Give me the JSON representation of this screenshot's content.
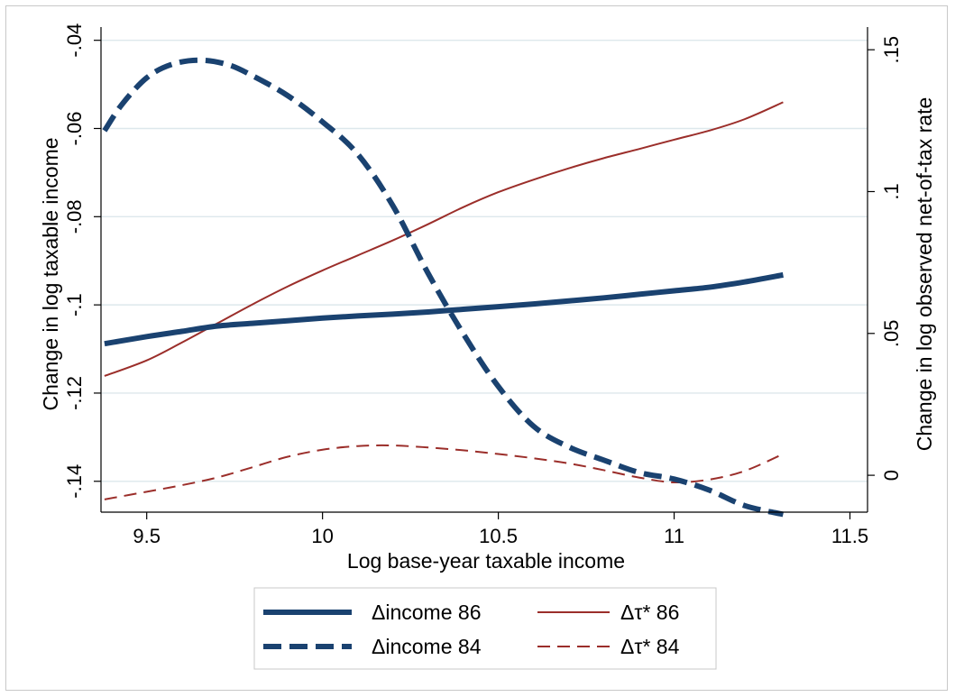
{
  "chart_data": {
    "type": "line",
    "xlabel": "Log base-year taxable income",
    "ylabel_left": "Change in log taxable income",
    "ylabel_right": "Change in log observed net-of-tax rate",
    "xlim": [
      9.37,
      11.55
    ],
    "ylim_left": [
      -0.147,
      -0.037
    ],
    "ylim_right": [
      -0.013,
      0.158
    ],
    "x_ticks": [
      9.5,
      10,
      10.5,
      11,
      11.5
    ],
    "x_tick_labels": [
      "9.5",
      "10",
      "10.5",
      "11",
      "11.5"
    ],
    "y_left_ticks": [
      -0.04,
      -0.06,
      -0.08,
      -0.1,
      -0.12,
      -0.14
    ],
    "y_left_tick_labels": [
      "-.04",
      "-.06",
      "-.08",
      "-.1",
      "-.12",
      "-.14"
    ],
    "y_right_ticks": [
      0.15,
      0.1,
      0.05,
      0
    ],
    "y_right_tick_labels": [
      ".15",
      ".1",
      ".05",
      "0"
    ],
    "grid": true,
    "legend_position": "bottom",
    "colors": {
      "navy": "#1a4270",
      "maroon": "#9b2e2a",
      "grid": "#dde8ec"
    },
    "series": [
      {
        "name": "Δincome 86",
        "axis": "left",
        "style": "thick-solid",
        "x": [
          9.38,
          9.5,
          9.6,
          9.7,
          9.8,
          9.9,
          10.0,
          10.1,
          10.2,
          10.3,
          10.4,
          10.5,
          10.6,
          10.7,
          10.8,
          10.9,
          11.0,
          11.1,
          11.2,
          11.31
        ],
        "y": [
          -0.1088,
          -0.1072,
          -0.106,
          -0.1048,
          -0.1042,
          -0.1036,
          -0.103,
          -0.1025,
          -0.1021,
          -0.1016,
          -0.101,
          -0.1004,
          -0.0998,
          -0.0991,
          -0.0984,
          -0.0976,
          -0.0968,
          -0.096,
          -0.0948,
          -0.0932
        ]
      },
      {
        "name": "Δincome 84",
        "axis": "left",
        "style": "thick-dashed",
        "x": [
          9.38,
          9.43,
          9.5,
          9.57,
          9.65,
          9.73,
          9.8,
          9.9,
          10.0,
          10.1,
          10.2,
          10.3,
          10.4,
          10.5,
          10.6,
          10.7,
          10.8,
          10.9,
          11.0,
          11.1,
          11.2,
          11.31
        ],
        "y": [
          -0.0605,
          -0.0545,
          -0.0485,
          -0.0455,
          -0.0445,
          -0.0455,
          -0.048,
          -0.0525,
          -0.0585,
          -0.0658,
          -0.0775,
          -0.0928,
          -0.1065,
          -0.1185,
          -0.1275,
          -0.1322,
          -0.1352,
          -0.138,
          -0.1395,
          -0.142,
          -0.1455,
          -0.1475
        ]
      },
      {
        "name": "Δτ* 86",
        "axis": "right",
        "style": "thin-solid",
        "x": [
          9.38,
          9.5,
          9.6,
          9.7,
          9.8,
          9.9,
          10.0,
          10.1,
          10.2,
          10.3,
          10.4,
          10.5,
          10.6,
          10.7,
          10.8,
          10.9,
          11.0,
          11.1,
          11.2,
          11.31
        ],
        "y": [
          0.035,
          0.0405,
          0.0468,
          0.0535,
          0.0602,
          0.0665,
          0.0722,
          0.0775,
          0.0828,
          0.0885,
          0.0945,
          0.0998,
          0.1042,
          0.1082,
          0.1118,
          0.115,
          0.1183,
          0.1215,
          0.1255,
          0.1315
        ]
      },
      {
        "name": "Δτ* 84",
        "axis": "right",
        "style": "thin-dashed",
        "x": [
          9.38,
          9.5,
          9.6,
          9.7,
          9.8,
          9.9,
          10.0,
          10.1,
          10.2,
          10.3,
          10.4,
          10.5,
          10.6,
          10.7,
          10.8,
          10.9,
          11.0,
          11.1,
          11.2,
          11.31
        ],
        "y": [
          -0.0085,
          -0.0058,
          -0.0035,
          -0.0008,
          0.0028,
          0.0065,
          0.009,
          0.0103,
          0.0105,
          0.0098,
          0.0088,
          0.0075,
          0.006,
          0.0042,
          0.0018,
          -0.0008,
          -0.0025,
          -0.0015,
          0.0015,
          0.0075
        ]
      }
    ]
  }
}
